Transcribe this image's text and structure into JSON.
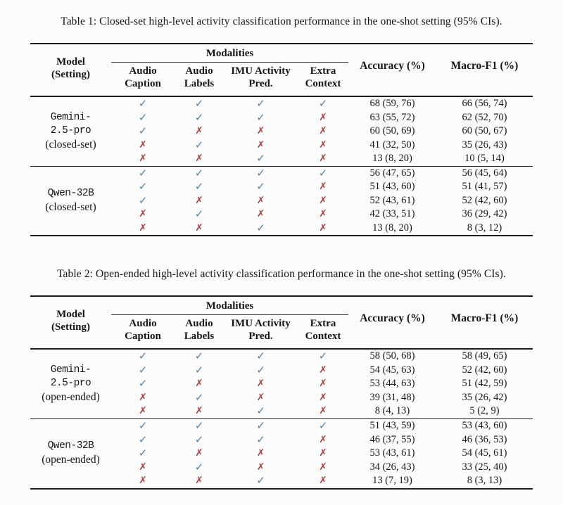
{
  "colors": {
    "check": "#4d81a8",
    "cross": "#b13c3c",
    "rule": "#1a1a1a",
    "text": "#161616",
    "background": "#fcfcfc"
  },
  "glyphs": {
    "check": "✓",
    "cross": "✗"
  },
  "tables": [
    {
      "caption": "Table 1: Closed-set high-level activity classification performance in the one-shot setting (95% CIs).",
      "header": {
        "model_line1": "Model",
        "model_line2": "(Setting)",
        "modalities_label": "Modalities",
        "columns": [
          {
            "line1": "Audio",
            "line2": "Caption"
          },
          {
            "line1": "Audio",
            "line2": "Labels"
          },
          {
            "line1": "IMU Activity",
            "line2": "Pred."
          },
          {
            "line1": "Extra",
            "line2": "Context"
          }
        ],
        "accuracy_label": "Accuracy (%)",
        "macro_f1_label": "Macro-F1 (%)"
      },
      "groups": [
        {
          "model_lines": [
            "Gemini-",
            "2.5-pro"
          ],
          "setting": "(closed-set)",
          "rows": [
            {
              "modalities": [
                true,
                true,
                true,
                true
              ],
              "accuracy": "68 (59, 76)",
              "macro_f1": "66 (56, 74)"
            },
            {
              "modalities": [
                true,
                true,
                true,
                false
              ],
              "accuracy": "63 (55, 72)",
              "macro_f1": "62 (52, 70)"
            },
            {
              "modalities": [
                true,
                false,
                false,
                false
              ],
              "accuracy": "60 (50, 69)",
              "macro_f1": "60 (50, 67)"
            },
            {
              "modalities": [
                false,
                true,
                false,
                false
              ],
              "accuracy": "41 (32, 50)",
              "macro_f1": "35 (26, 43)"
            },
            {
              "modalities": [
                false,
                false,
                true,
                false
              ],
              "accuracy": "13 (8, 20)",
              "macro_f1": "10 (5, 14)"
            }
          ]
        },
        {
          "model_lines": [
            "Qwen-32B"
          ],
          "setting": "(closed-set)",
          "rows": [
            {
              "modalities": [
                true,
                true,
                true,
                true
              ],
              "accuracy": "56 (47, 65)",
              "macro_f1": "56 (45, 64)"
            },
            {
              "modalities": [
                true,
                true,
                true,
                false
              ],
              "accuracy": "51 (43, 60)",
              "macro_f1": "51 (41, 57)"
            },
            {
              "modalities": [
                true,
                false,
                false,
                false
              ],
              "accuracy": "52 (43, 61)",
              "macro_f1": "52 (42, 60)"
            },
            {
              "modalities": [
                false,
                true,
                false,
                false
              ],
              "accuracy": "42 (33, 51)",
              "macro_f1": "36 (29, 42)"
            },
            {
              "modalities": [
                false,
                false,
                true,
                false
              ],
              "accuracy": "13 (8, 20)",
              "macro_f1": "8 (3, 12)"
            }
          ]
        }
      ]
    },
    {
      "caption": "Table 2: Open-ended high-level activity classification performance in the one-shot setting (95% CIs).",
      "header": {
        "model_line1": "Model",
        "model_line2": "(Setting)",
        "modalities_label": "Modalities",
        "columns": [
          {
            "line1": "Audio",
            "line2": "Caption"
          },
          {
            "line1": "Audio",
            "line2": "Labels"
          },
          {
            "line1": "IMU Activity",
            "line2": "Pred."
          },
          {
            "line1": "Extra",
            "line2": "Context"
          }
        ],
        "accuracy_label": "Accuracy (%)",
        "macro_f1_label": "Macro-F1 (%)"
      },
      "groups": [
        {
          "model_lines": [
            "Gemini-",
            "2.5-pro"
          ],
          "setting": "(open-ended)",
          "rows": [
            {
              "modalities": [
                true,
                true,
                true,
                true
              ],
              "accuracy": "58 (50, 68)",
              "macro_f1": "58 (49, 65)"
            },
            {
              "modalities": [
                true,
                true,
                true,
                false
              ],
              "accuracy": "54 (45, 63)",
              "macro_f1": "52 (42, 60)"
            },
            {
              "modalities": [
                true,
                false,
                false,
                false
              ],
              "accuracy": "53 (44, 63)",
              "macro_f1": "51 (42, 59)"
            },
            {
              "modalities": [
                false,
                true,
                false,
                false
              ],
              "accuracy": "39 (31, 48)",
              "macro_f1": "35 (26, 42)"
            },
            {
              "modalities": [
                false,
                false,
                true,
                false
              ],
              "accuracy": "8 (4, 13)",
              "macro_f1": "5 (2, 9)"
            }
          ]
        },
        {
          "model_lines": [
            "Qwen-32B"
          ],
          "setting": "(open-ended)",
          "rows": [
            {
              "modalities": [
                true,
                true,
                true,
                true
              ],
              "accuracy": "51 (43, 59)",
              "macro_f1": "53 (43, 60)"
            },
            {
              "modalities": [
                true,
                true,
                true,
                false
              ],
              "accuracy": "46 (37, 55)",
              "macro_f1": "46 (36, 53)"
            },
            {
              "modalities": [
                true,
                false,
                false,
                false
              ],
              "accuracy": "53 (43, 61)",
              "macro_f1": "54 (45, 61)"
            },
            {
              "modalities": [
                false,
                true,
                false,
                false
              ],
              "accuracy": "34 (26, 43)",
              "macro_f1": "33 (25, 40)"
            },
            {
              "modalities": [
                false,
                false,
                true,
                false
              ],
              "accuracy": "13 (7, 19)",
              "macro_f1": "8 (3, 13)"
            }
          ]
        }
      ]
    }
  ]
}
